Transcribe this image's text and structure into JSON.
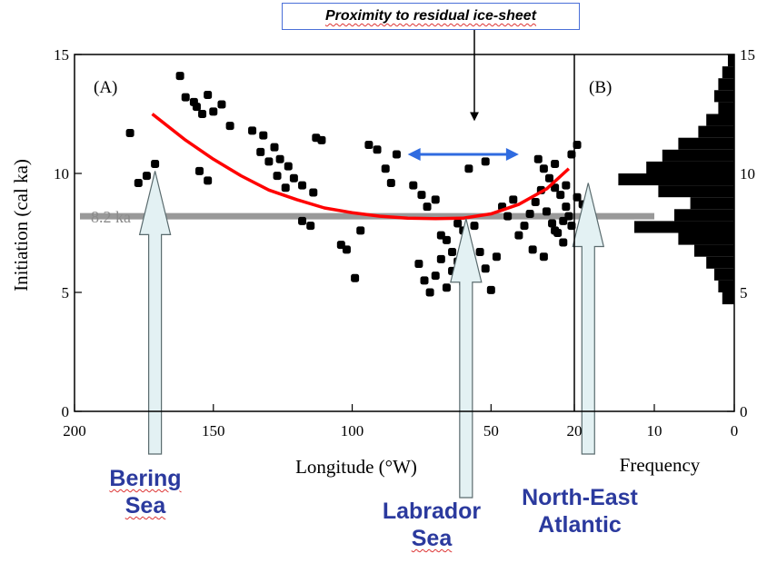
{
  "callout": {
    "text": "Proximity to residual ice-sheet"
  },
  "regions": {
    "bering": [
      "Bering",
      "Sea"
    ],
    "labrador": [
      "Labrador",
      "Sea"
    ],
    "ne_atlantic": [
      "North-East",
      "Atlantic"
    ]
  },
  "threshold": {
    "label": "8.2 ka",
    "value": 8.2
  },
  "colors": {
    "curve": "#ff0000",
    "threshold": "#999999",
    "double_arrow": "#2f6be0",
    "region_text": "#2b3a9e",
    "region_arrow_fill": "#e3f1f3"
  },
  "chart_data": [
    {
      "type": "scatter",
      "panel_label": "(A)",
      "xlabel": "Longitude (°W)",
      "ylabel": "Initiation (cal ka)",
      "xlim": [
        200,
        20
      ],
      "ylim": [
        0,
        15
      ],
      "xticks": [
        200,
        150,
        100,
        50,
        20
      ],
      "yticks": [
        0,
        5,
        10,
        15
      ],
      "points": [
        [
          180,
          11.7
        ],
        [
          177,
          9.6
        ],
        [
          174,
          9.9
        ],
        [
          171,
          10.4
        ],
        [
          162,
          14.1
        ],
        [
          160,
          13.2
        ],
        [
          157,
          13.0
        ],
        [
          156,
          12.8
        ],
        [
          154,
          12.5
        ],
        [
          152,
          13.3
        ],
        [
          150,
          12.6
        ],
        [
          147,
          12.9
        ],
        [
          144,
          12.0
        ],
        [
          155,
          10.1
        ],
        [
          152,
          9.7
        ],
        [
          136,
          11.8
        ],
        [
          132,
          11.6
        ],
        [
          128,
          11.1
        ],
        [
          126,
          10.6
        ],
        [
          123,
          10.3
        ],
        [
          121,
          9.8
        ],
        [
          118,
          9.5
        ],
        [
          114,
          9.2
        ],
        [
          133,
          10.9
        ],
        [
          130,
          10.5
        ],
        [
          127,
          9.9
        ],
        [
          124,
          9.4
        ],
        [
          118,
          8.0
        ],
        [
          115,
          7.8
        ],
        [
          113,
          11.5
        ],
        [
          111,
          11.4
        ],
        [
          104,
          7.0
        ],
        [
          102,
          6.8
        ],
        [
          99,
          5.6
        ],
        [
          97,
          7.6
        ],
        [
          94,
          11.2
        ],
        [
          91,
          11.0
        ],
        [
          88,
          10.2
        ],
        [
          86,
          9.6
        ],
        [
          84,
          10.8
        ],
        [
          78,
          9.5
        ],
        [
          75,
          9.1
        ],
        [
          73,
          8.6
        ],
        [
          70,
          8.9
        ],
        [
          68,
          7.4
        ],
        [
          66,
          7.2
        ],
        [
          64,
          6.7
        ],
        [
          62,
          7.9
        ],
        [
          60,
          7.6
        ],
        [
          58,
          6.9
        ],
        [
          76,
          6.2
        ],
        [
          74,
          5.5
        ],
        [
          72,
          5.0
        ],
        [
          70,
          5.7
        ],
        [
          68,
          6.4
        ],
        [
          66,
          5.2
        ],
        [
          64,
          5.9
        ],
        [
          62,
          6.3
        ],
        [
          60,
          5.4
        ],
        [
          56,
          7.8
        ],
        [
          54,
          6.7
        ],
        [
          52,
          6.0
        ],
        [
          50,
          5.1
        ],
        [
          48,
          6.5
        ],
        [
          58,
          10.2
        ],
        [
          52,
          10.5
        ],
        [
          46,
          8.6
        ],
        [
          44,
          8.2
        ],
        [
          42,
          8.9
        ],
        [
          40,
          7.4
        ],
        [
          38,
          7.8
        ],
        [
          36,
          8.3
        ],
        [
          34,
          8.8
        ],
        [
          33,
          10.6
        ],
        [
          31,
          10.2
        ],
        [
          29,
          9.8
        ],
        [
          27,
          9.4
        ],
        [
          25,
          9.1
        ],
        [
          23,
          8.6
        ],
        [
          21,
          10.8
        ],
        [
          19,
          11.2
        ],
        [
          32,
          9.3
        ],
        [
          30,
          8.4
        ],
        [
          28,
          7.9
        ],
        [
          26,
          7.5
        ],
        [
          24,
          7.1
        ],
        [
          22,
          8.2
        ],
        [
          35,
          6.8
        ],
        [
          31,
          6.5
        ],
        [
          27,
          7.6
        ],
        [
          24,
          8.0
        ],
        [
          21,
          7.8
        ],
        [
          19,
          9.0
        ],
        [
          17,
          8.7
        ],
        [
          15,
          7.9
        ],
        [
          14,
          7.5
        ],
        [
          27,
          10.4
        ],
        [
          23,
          9.5
        ]
      ],
      "fit_curve": [
        [
          172,
          12.5
        ],
        [
          160,
          11.4
        ],
        [
          150,
          10.6
        ],
        [
          140,
          9.9
        ],
        [
          130,
          9.3
        ],
        [
          120,
          8.9
        ],
        [
          110,
          8.55
        ],
        [
          100,
          8.35
        ],
        [
          90,
          8.2
        ],
        [
          80,
          8.12
        ],
        [
          70,
          8.1
        ],
        [
          60,
          8.12
        ],
        [
          50,
          8.3
        ],
        [
          40,
          8.7
        ],
        [
          30,
          9.35
        ],
        [
          22,
          10.2
        ]
      ],
      "double_arrow": {
        "from": 80,
        "to": 40,
        "y": 10.8
      },
      "callout_arrow": {
        "x": 56,
        "y_top": 15.0,
        "y_bottom": 12.2
      },
      "region_arrows": [
        {
          "x": 171,
          "y_top": 10.1
        },
        {
          "x": 59,
          "y_top": 8.1
        },
        {
          "x": 15,
          "y_top": 9.6
        }
      ]
    },
    {
      "type": "bar",
      "orientation": "horizontal",
      "panel_label": "(B)",
      "xlabel": "Frequency",
      "xlim": [
        20,
        0
      ],
      "ylim": [
        0,
        15
      ],
      "xticks": [
        20,
        10,
        0
      ],
      "yticks": [
        0,
        5,
        10,
        15
      ],
      "bins": [
        [
          4.5,
          5.0,
          1.5
        ],
        [
          5.0,
          5.5,
          2.0
        ],
        [
          5.5,
          6.0,
          2.5
        ],
        [
          6.0,
          6.5,
          3.5
        ],
        [
          6.5,
          7.0,
          5.0
        ],
        [
          7.0,
          7.5,
          7.0
        ],
        [
          7.5,
          8.0,
          12.5
        ],
        [
          8.0,
          8.5,
          7.5
        ],
        [
          8.5,
          9.0,
          5.5
        ],
        [
          9.0,
          9.5,
          9.5
        ],
        [
          9.5,
          10.0,
          14.5
        ],
        [
          10.0,
          10.5,
          11.0
        ],
        [
          10.5,
          11.0,
          9.0
        ],
        [
          11.0,
          11.5,
          7.0
        ],
        [
          11.5,
          12.0,
          4.5
        ],
        [
          12.0,
          12.5,
          3.5
        ],
        [
          12.5,
          13.0,
          2.0
        ],
        [
          13.0,
          13.5,
          2.5
        ],
        [
          13.5,
          14.0,
          2.0
        ],
        [
          14.0,
          14.5,
          1.5
        ],
        [
          14.5,
          15.0,
          0.8
        ]
      ]
    }
  ]
}
